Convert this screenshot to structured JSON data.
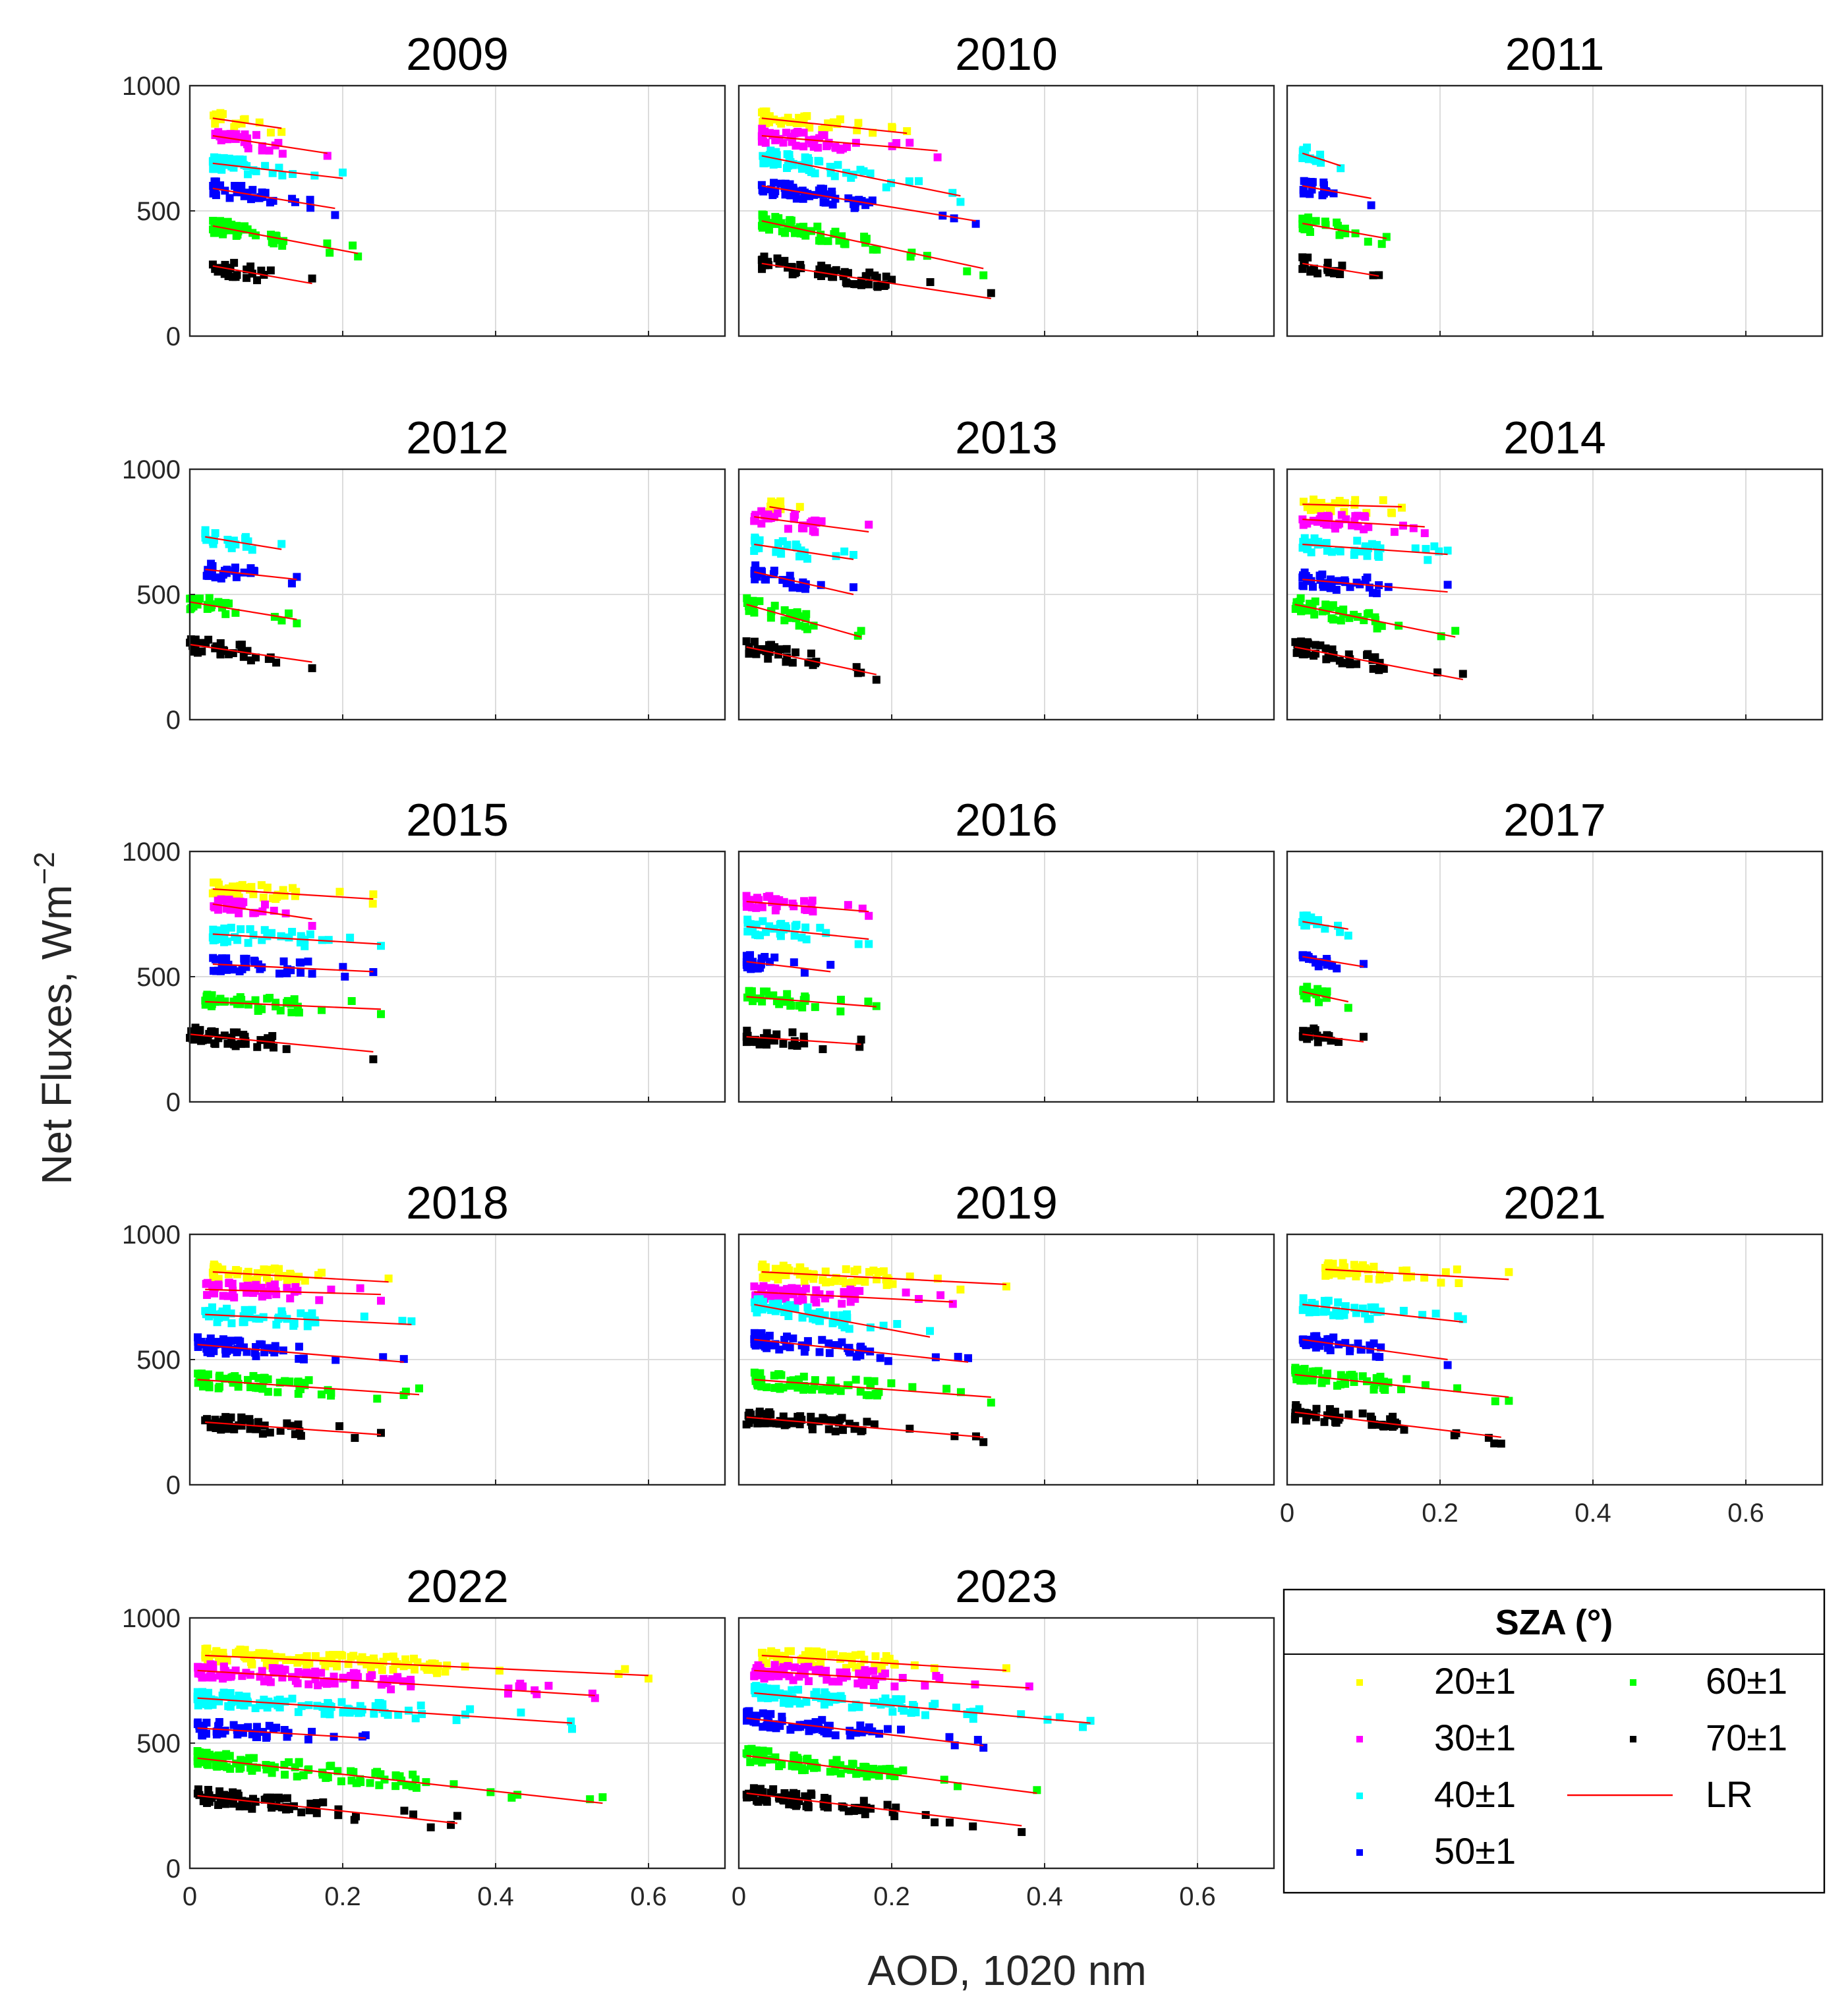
{
  "chart_data": {
    "type": "scatter",
    "ylabel": "Net Fluxes, Wm",
    "ylabel_exponent": "−2",
    "xlabel": "AOD, 1020 nm",
    "xlim": [
      0,
      0.7
    ],
    "ylim": [
      0,
      1000
    ],
    "x_ticks": [
      "0",
      "0.2",
      "0.4",
      "0.6"
    ],
    "y_ticks": [
      "0",
      "500",
      "1000"
    ],
    "grid": true,
    "legend": {
      "title": "SZA (°)",
      "placement": "bottom-right",
      "entries": [
        {
          "label": "20±1",
          "color": "#ffff00",
          "marker": "square"
        },
        {
          "label": "30±1",
          "color": "#ff00ff",
          "marker": "square"
        },
        {
          "label": "40±1",
          "color": "#00ffff",
          "marker": "square"
        },
        {
          "label": "50±1",
          "color": "#0000ff",
          "marker": "square"
        },
        {
          "label": "60±1",
          "color": "#00ff00",
          "marker": "square"
        },
        {
          "label": "70±1",
          "color": "#000000",
          "marker": "square"
        },
        {
          "label": "LR",
          "color": "#ff0000",
          "marker": "line"
        }
      ]
    },
    "panels": [
      {
        "title": "2009",
        "series": [
          {
            "sza": "20±1",
            "x_range": [
              0.03,
              0.12
            ],
            "fit": [
              870,
              830
            ]
          },
          {
            "sza": "30±1",
            "x_range": [
              0.03,
              0.18
            ],
            "fit": [
              800,
              730
            ]
          },
          {
            "sza": "40±1",
            "x_range": [
              0.03,
              0.2
            ],
            "fit": [
              690,
              630
            ]
          },
          {
            "sza": "50±1",
            "x_range": [
              0.03,
              0.19
            ],
            "fit": [
              590,
              510
            ]
          },
          {
            "sza": "60±1",
            "x_range": [
              0.03,
              0.22
            ],
            "fit": [
              440,
              330
            ]
          },
          {
            "sza": "70±1",
            "x_range": [
              0.03,
              0.16
            ],
            "fit": [
              280,
              210
            ]
          }
        ]
      },
      {
        "title": "2010",
        "series": [
          {
            "sza": "20±1",
            "x_range": [
              0.03,
              0.22
            ],
            "fit": [
              870,
              810
            ]
          },
          {
            "sza": "30±1",
            "x_range": [
              0.03,
              0.26
            ],
            "fit": [
              800,
              740
            ]
          },
          {
            "sza": "40±1",
            "x_range": [
              0.03,
              0.29
            ],
            "fit": [
              720,
              560
            ]
          },
          {
            "sza": "50±1",
            "x_range": [
              0.03,
              0.31
            ],
            "fit": [
              600,
              460
            ]
          },
          {
            "sza": "60±1",
            "x_range": [
              0.03,
              0.32
            ],
            "fit": [
              460,
              270
            ]
          },
          {
            "sza": "70±1",
            "x_range": [
              0.03,
              0.33
            ],
            "fit": [
              290,
              150
            ]
          }
        ]
      },
      {
        "title": "2011",
        "series": [
          {
            "sza": "40±1",
            "x_range": [
              0.02,
              0.07
            ],
            "fit": [
              730,
              680
            ]
          },
          {
            "sza": "50±1",
            "x_range": [
              0.02,
              0.11
            ],
            "fit": [
              600,
              550
            ]
          },
          {
            "sza": "60±1",
            "x_range": [
              0.02,
              0.13
            ],
            "fit": [
              450,
              390
            ]
          },
          {
            "sza": "70±1",
            "x_range": [
              0.02,
              0.12
            ],
            "fit": [
              290,
              240
            ]
          }
        ]
      },
      {
        "title": "2012",
        "series": [
          {
            "sza": "40±1",
            "x_range": [
              0.02,
              0.12
            ],
            "fit": [
              730,
              680
            ]
          },
          {
            "sza": "50±1",
            "x_range": [
              0.02,
              0.14
            ],
            "fit": [
              600,
              560
            ]
          },
          {
            "sza": "60±1",
            "x_range": [
              0.0,
              0.14
            ],
            "fit": [
              470,
              400
            ]
          },
          {
            "sza": "70±1",
            "x_range": [
              0.0,
              0.16
            ],
            "fit": [
              300,
              230
            ]
          }
        ]
      },
      {
        "title": "2013",
        "series": [
          {
            "sza": "20±1",
            "x_range": [
              0.04,
              0.08
            ],
            "fit": [
              850,
              830
            ]
          },
          {
            "sza": "30±1",
            "x_range": [
              0.02,
              0.17
            ],
            "fit": [
              810,
              750
            ]
          },
          {
            "sza": "40±1",
            "x_range": [
              0.02,
              0.15
            ],
            "fit": [
              700,
              640
            ]
          },
          {
            "sza": "50±1",
            "x_range": [
              0.02,
              0.15
            ],
            "fit": [
              590,
              500
            ]
          },
          {
            "sza": "60±1",
            "x_range": [
              0.01,
              0.16
            ],
            "fit": [
              460,
              330
            ]
          },
          {
            "sza": "70±1",
            "x_range": [
              0.01,
              0.18
            ],
            "fit": [
              290,
              180
            ]
          }
        ]
      },
      {
        "title": "2014",
        "series": [
          {
            "sza": "20±1",
            "x_range": [
              0.02,
              0.15
            ],
            "fit": [
              860,
              850
            ]
          },
          {
            "sza": "30±1",
            "x_range": [
              0.02,
              0.18
            ],
            "fit": [
              800,
              770
            ]
          },
          {
            "sza": "40±1",
            "x_range": [
              0.02,
              0.21
            ],
            "fit": [
              700,
              660
            ]
          },
          {
            "sza": "50±1",
            "x_range": [
              0.02,
              0.21
            ],
            "fit": [
              560,
              510
            ]
          },
          {
            "sza": "60±1",
            "x_range": [
              0.01,
              0.22
            ],
            "fit": [
              460,
              330
            ]
          },
          {
            "sza": "70±1",
            "x_range": [
              0.01,
              0.23
            ],
            "fit": [
              290,
              160
            ]
          }
        ]
      },
      {
        "title": "2015",
        "series": [
          {
            "sza": "20±1",
            "x_range": [
              0.03,
              0.24
            ],
            "fit": [
              850,
              810
            ]
          },
          {
            "sza": "30±1",
            "x_range": [
              0.03,
              0.16
            ],
            "fit": [
              790,
              730
            ]
          },
          {
            "sza": "40±1",
            "x_range": [
              0.03,
              0.25
            ],
            "fit": [
              670,
              630
            ]
          },
          {
            "sza": "50±1",
            "x_range": [
              0.03,
              0.24
            ],
            "fit": [
              550,
              520
            ]
          },
          {
            "sza": "60±1",
            "x_range": [
              0.02,
              0.25
            ],
            "fit": [
              400,
              370
            ]
          },
          {
            "sza": "70±1",
            "x_range": [
              0.0,
              0.24
            ],
            "fit": [
              270,
              200
            ]
          }
        ]
      },
      {
        "title": "2016",
        "series": [
          {
            "sza": "30±1",
            "x_range": [
              0.01,
              0.17
            ],
            "fit": [
              800,
              760
            ]
          },
          {
            "sza": "40±1",
            "x_range": [
              0.01,
              0.17
            ],
            "fit": [
              700,
              650
            ]
          },
          {
            "sza": "50±1",
            "x_range": [
              0.01,
              0.12
            ],
            "fit": [
              560,
              520
            ]
          },
          {
            "sza": "60±1",
            "x_range": [
              0.01,
              0.18
            ],
            "fit": [
              420,
              380
            ]
          },
          {
            "sza": "70±1",
            "x_range": [
              0.01,
              0.16
            ],
            "fit": [
              260,
              230
            ]
          }
        ]
      },
      {
        "title": "2017",
        "series": [
          {
            "sza": "40±1",
            "x_range": [
              0.02,
              0.08
            ],
            "fit": [
              720,
              690
            ]
          },
          {
            "sza": "50±1",
            "x_range": [
              0.02,
              0.1
            ],
            "fit": [
              580,
              540
            ]
          },
          {
            "sza": "60±1",
            "x_range": [
              0.02,
              0.08
            ],
            "fit": [
              440,
              400
            ]
          },
          {
            "sza": "70±1",
            "x_range": [
              0.02,
              0.1
            ],
            "fit": [
              270,
              240
            ]
          }
        ]
      },
      {
        "title": "2018",
        "series": [
          {
            "sza": "20±1",
            "x_range": [
              0.03,
              0.26
            ],
            "fit": [
              850,
              810
            ]
          },
          {
            "sza": "30±1",
            "x_range": [
              0.02,
              0.25
            ],
            "fit": [
              780,
              760
            ]
          },
          {
            "sza": "40±1",
            "x_range": [
              0.02,
              0.29
            ],
            "fit": [
              680,
              640
            ]
          },
          {
            "sza": "50±1",
            "x_range": [
              0.01,
              0.28
            ],
            "fit": [
              560,
              490
            ]
          },
          {
            "sza": "60±1",
            "x_range": [
              0.01,
              0.3
            ],
            "fit": [
              420,
              360
            ]
          },
          {
            "sza": "70±1",
            "x_range": [
              0.02,
              0.25
            ],
            "fit": [
              250,
              200
            ]
          }
        ]
      },
      {
        "title": "2019",
        "series": [
          {
            "sza": "20±1",
            "x_range": [
              0.03,
              0.35
            ],
            "fit": [
              850,
              800
            ]
          },
          {
            "sza": "30±1",
            "x_range": [
              0.02,
              0.28
            ],
            "fit": [
              770,
              730
            ]
          },
          {
            "sza": "40±1",
            "x_range": [
              0.02,
              0.25
            ],
            "fit": [
              720,
              590
            ]
          },
          {
            "sza": "50±1",
            "x_range": [
              0.02,
              0.3
            ],
            "fit": [
              580,
              490
            ]
          },
          {
            "sza": "60±1",
            "x_range": [
              0.02,
              0.33
            ],
            "fit": [
              420,
              350
            ]
          },
          {
            "sza": "70±1",
            "x_range": [
              0.01,
              0.32
            ],
            "fit": [
              270,
              190
            ]
          }
        ]
      },
      {
        "title": "2021",
        "series": [
          {
            "sza": "20±1",
            "x_range": [
              0.05,
              0.29
            ],
            "fit": [
              860,
              820
            ]
          },
          {
            "sza": "40±1",
            "x_range": [
              0.02,
              0.23
            ],
            "fit": [
              720,
              650
            ]
          },
          {
            "sza": "50±1",
            "x_range": [
              0.02,
              0.21
            ],
            "fit": [
              580,
              500
            ]
          },
          {
            "sza": "60±1",
            "x_range": [
              0.01,
              0.29
            ],
            "fit": [
              440,
              350
            ]
          },
          {
            "sza": "70±1",
            "x_range": [
              0.01,
              0.28
            ],
            "fit": [
              290,
              190
            ]
          }
        ]
      },
      {
        "title": "2022",
        "series": [
          {
            "sza": "20±1",
            "x_range": [
              0.02,
              0.6
            ],
            "fit": [
              850,
              770
            ]
          },
          {
            "sza": "30±1",
            "x_range": [
              0.01,
              0.53
            ],
            "fit": [
              790,
              690
            ]
          },
          {
            "sza": "40±1",
            "x_range": [
              0.01,
              0.5
            ],
            "fit": [
              680,
              580
            ]
          },
          {
            "sza": "50±1",
            "x_range": [
              0.01,
              0.23
            ],
            "fit": [
              560,
              520
            ]
          },
          {
            "sza": "60±1",
            "x_range": [
              0.01,
              0.54
            ],
            "fit": [
              440,
              260
            ]
          },
          {
            "sza": "70±1",
            "x_range": [
              0.01,
              0.35
            ],
            "fit": [
              290,
              180
            ]
          }
        ]
      },
      {
        "title": "2023",
        "series": [
          {
            "sza": "20±1",
            "x_range": [
              0.03,
              0.35
            ],
            "fit": [
              850,
              790
            ]
          },
          {
            "sza": "30±1",
            "x_range": [
              0.02,
              0.38
            ],
            "fit": [
              790,
              720
            ]
          },
          {
            "sza": "40±1",
            "x_range": [
              0.02,
              0.46
            ],
            "fit": [
              700,
              580
            ]
          },
          {
            "sza": "50±1",
            "x_range": [
              0.01,
              0.32
            ],
            "fit": [
              600,
              490
            ]
          },
          {
            "sza": "60±1",
            "x_range": [
              0.01,
              0.39
            ],
            "fit": [
              450,
              300
            ]
          },
          {
            "sza": "70±1",
            "x_range": [
              0.01,
              0.37
            ],
            "fit": [
              300,
              170
            ]
          }
        ]
      }
    ]
  }
}
